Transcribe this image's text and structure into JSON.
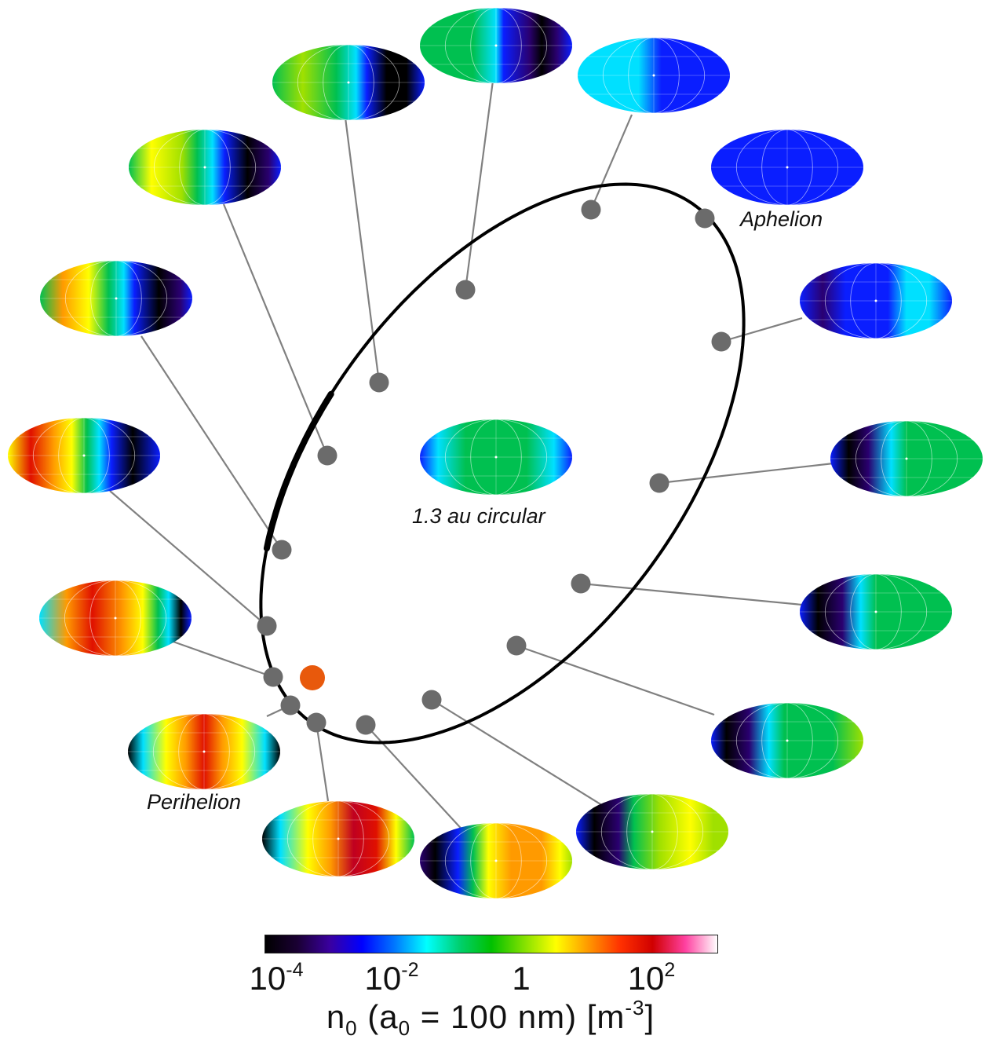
{
  "labels": {
    "aphelion": "Aphelion",
    "perihelion": "Perihelion",
    "circular": "1.3 au circular"
  },
  "colorbar": {
    "ticks": [
      {
        "base": "10",
        "exp": "-4"
      },
      {
        "base": "10",
        "exp": "-2"
      },
      {
        "base": "1",
        "exp": ""
      },
      {
        "base": "10",
        "exp": "2"
      }
    ],
    "title": {
      "pre": "n",
      "sub1": "0",
      "mid": " (a",
      "sub2": "0",
      "post": " = 100 nm) [m",
      "sup": "-3",
      "end": "]"
    },
    "colors": [
      "#000000",
      "#1a0033",
      "#3a00a0",
      "#0000ff",
      "#0077ff",
      "#00ffff",
      "#00d070",
      "#00c000",
      "#80e000",
      "#ffff00",
      "#ff9900",
      "#ff3000",
      "#d00000",
      "#ff40a0",
      "#ffffff"
    ]
  },
  "colormap": {
    "dark": "#000000",
    "purple": "#2a0070",
    "blue": "#0a1eff",
    "cyan": "#00e0ff",
    "green": "#00c050",
    "yellowgreen": "#a0e000",
    "yellow": "#ffff00",
    "orange": "#ff9a00",
    "red": "#e01000",
    "darkred": "#c00020"
  },
  "sun_color": "#e8590c",
  "orbit_color": "#000000",
  "marker_color": "#6b6b6b",
  "leader_color": "#808080"
}
